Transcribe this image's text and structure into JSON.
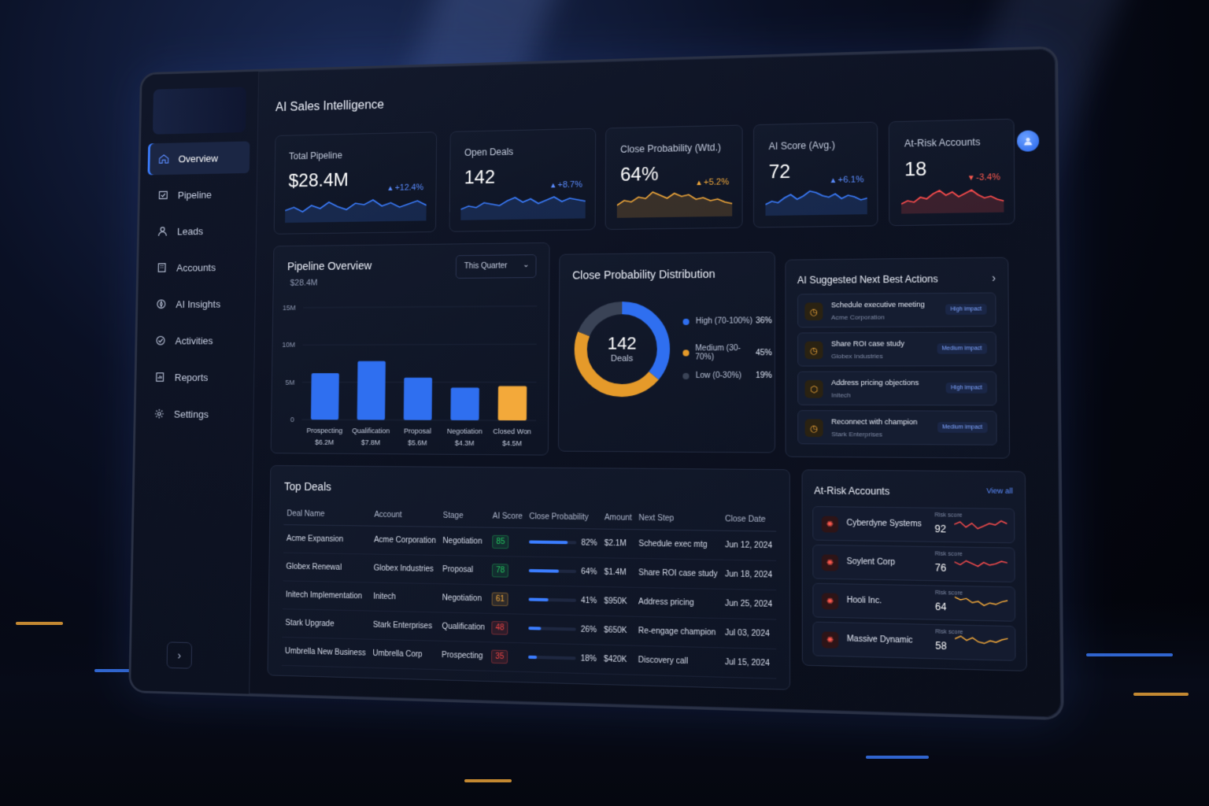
{
  "app": {
    "title": "AI Sales Intelligence"
  },
  "sidebar": {
    "items": [
      {
        "label": "Overview",
        "icon": "home-icon",
        "active": true
      },
      {
        "label": "Pipeline",
        "icon": "pipeline-icon"
      },
      {
        "label": "Leads",
        "icon": "user-icon"
      },
      {
        "label": "Accounts",
        "icon": "building-icon"
      },
      {
        "label": "AI Insights",
        "icon": "spark-icon"
      },
      {
        "label": "Activities",
        "icon": "check-circle-icon"
      },
      {
        "label": "Reports",
        "icon": "report-icon"
      },
      {
        "label": "Settings",
        "icon": "gear-icon"
      }
    ],
    "collapse_glyph": "›"
  },
  "kpis": [
    {
      "label": "Total Pipeline",
      "value": "$28.4M",
      "delta": "+12.4%",
      "trend": "up",
      "color": "#3b7dff"
    },
    {
      "label": "Open Deals",
      "value": "142",
      "delta": "+8.7%",
      "trend": "up",
      "color": "#3b7dff"
    },
    {
      "label": "Close Probability (Wtd.)",
      "value": "64%",
      "delta": "+5.2%",
      "trend": "up",
      "color": "#f3a93a"
    },
    {
      "label": "AI Score (Avg.)",
      "value": "72",
      "delta": "+6.1%",
      "trend": "up",
      "color": "#3b7dff"
    },
    {
      "label": "At-Risk Accounts",
      "value": "18",
      "delta": "-3.4%",
      "trend": "down",
      "color": "#ff4d4d"
    }
  ],
  "pipeline": {
    "title": "Pipeline Overview",
    "subtitle": "$28.4M",
    "filter": "This Quarter",
    "chart_data": {
      "type": "bar",
      "categories": [
        "Prospecting",
        "Qualification",
        "Proposal",
        "Negotiation",
        "Closed Won"
      ],
      "values": [
        6.2,
        7.8,
        5.6,
        4.3,
        4.5
      ],
      "value_labels": [
        "$6.2M",
        "$7.8M",
        "$5.6M",
        "$4.3M",
        "$4.5M"
      ],
      "y_ticks": [
        "15M",
        "10M",
        "5M",
        "0"
      ],
      "ylim": [
        0,
        15
      ],
      "colors": [
        "#2f6ff0",
        "#2f6ff0",
        "#2f6ff0",
        "#2f6ff0",
        "#f3a93a"
      ]
    }
  },
  "distribution": {
    "title": "Close Probability Distribution",
    "center_value": "142",
    "center_label": "Deals",
    "segments": [
      {
        "label": "High (70-100%)",
        "pct": "36%",
        "value": 36,
        "color": "#2f6ff0"
      },
      {
        "label": "Medium (30-70%)",
        "pct": "45%",
        "value": 45,
        "color": "#e59a2a"
      },
      {
        "label": "Low (0-30%)",
        "pct": "19%",
        "value": 19,
        "color": "#3a4356"
      }
    ]
  },
  "actions": {
    "title": "AI Suggested Next Best Actions",
    "chevron": "›",
    "items": [
      {
        "title": "Schedule executive meeting",
        "sub": "Acme Corporation",
        "impact": "High impact"
      },
      {
        "title": "Share ROI case study",
        "sub": "Globex Industries",
        "impact": "Medium impact"
      },
      {
        "title": "Address pricing objections",
        "sub": "Initech",
        "impact": "High impact"
      },
      {
        "title": "Reconnect with champion",
        "sub": "Stark Enterprises",
        "impact": "Medium impact"
      }
    ]
  },
  "top_deals": {
    "title": "Top Deals",
    "headers": [
      "Deal Name",
      "Account",
      "Stage",
      "AI Score",
      "Close Probability",
      "Amount",
      "Next Step",
      "Close Date"
    ],
    "rows": [
      {
        "name": "Acme Expansion",
        "account": "Acme Corporation",
        "stage": "Negotiation",
        "score": "85",
        "score_color": "#22c55e",
        "prob": "82%",
        "prob_value": 82,
        "amount": "$2.1M",
        "next": "Schedule exec mtg",
        "date": "Jun 12, 2024"
      },
      {
        "name": "Globex Renewal",
        "account": "Globex Industries",
        "stage": "Proposal",
        "score": "78",
        "score_color": "#22c55e",
        "prob": "64%",
        "prob_value": 64,
        "amount": "$1.4M",
        "next": "Share ROI case study",
        "date": "Jun 18, 2024"
      },
      {
        "name": "Initech Implementation",
        "account": "Initech",
        "stage": "Negotiation",
        "score": "61",
        "score_color": "#f3a93a",
        "prob": "41%",
        "prob_value": 41,
        "amount": "$950K",
        "next": "Address pricing",
        "date": "Jun 25, 2024"
      },
      {
        "name": "Stark Upgrade",
        "account": "Stark Enterprises",
        "stage": "Qualification",
        "score": "48",
        "score_color": "#ef4444",
        "prob": "26%",
        "prob_value": 26,
        "amount": "$650K",
        "next": "Re-engage champion",
        "date": "Jul 03, 2024"
      },
      {
        "name": "Umbrella New Business",
        "account": "Umbrella Corp",
        "stage": "Prospecting",
        "score": "35",
        "score_color": "#ef4444",
        "prob": "18%",
        "prob_value": 18,
        "amount": "$420K",
        "next": "Discovery call",
        "date": "Jul 15, 2024"
      }
    ]
  },
  "at_risk": {
    "title": "At-Risk Accounts",
    "view_all": "View all",
    "items": [
      {
        "name": "Cyberdyne Systems",
        "label": "Risk score",
        "score": "92",
        "color": "#ff4d4d"
      },
      {
        "name": "Soylent Corp",
        "label": "Risk score",
        "score": "76",
        "color": "#ff4d4d"
      },
      {
        "name": "Hooli Inc.",
        "label": "Risk score",
        "score": "64",
        "color": "#f3a93a"
      },
      {
        "name": "Massive Dynamic",
        "label": "Risk score",
        "score": "58",
        "color": "#f3a93a"
      }
    ]
  }
}
